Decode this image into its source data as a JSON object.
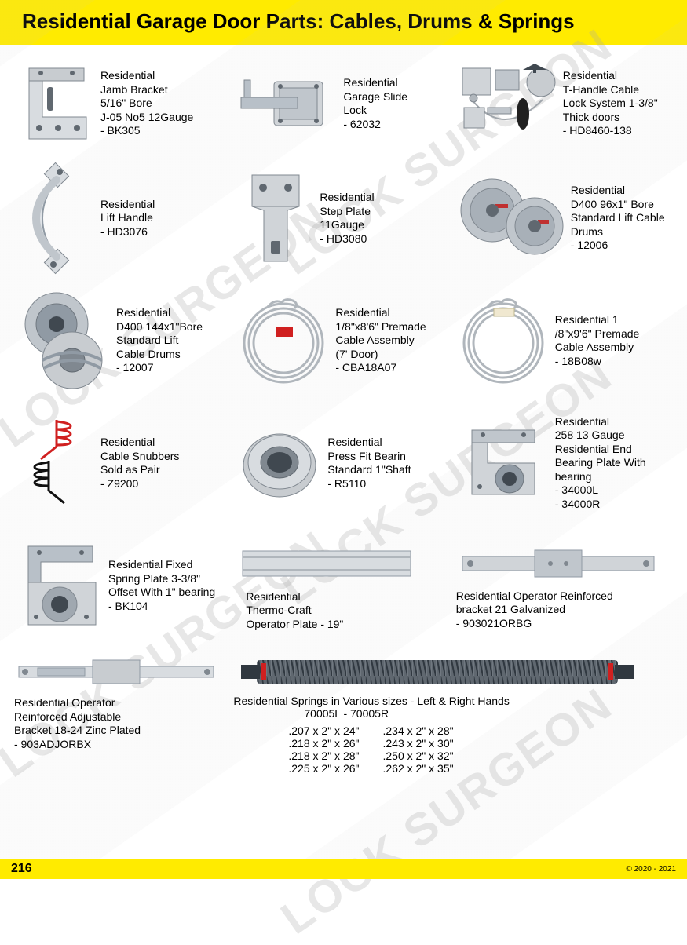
{
  "header": {
    "title": "Residential Garage Door Parts: Cables, Drums & Springs",
    "bg_color": "#ffeb00",
    "text_color": "#000000"
  },
  "watermark_text": "LOCK SURGEON",
  "products": {
    "r1": [
      {
        "name": "jamb-bracket",
        "text": "Residential\nJamb Bracket\n5/16\" Bore\nJ-05 No5 12Gauge\n- BK305",
        "icon": "bracket-angle"
      },
      {
        "name": "slide-lock",
        "text": "Residential\nGarage Slide\nLock\n- 62032",
        "icon": "slide-lock"
      },
      {
        "name": "t-handle-lock",
        "text": "Residential\nT-Handle Cable\nLock System 1-3/8\"\nThick doors\n- HD8460-138",
        "icon": "kit"
      }
    ],
    "r2": [
      {
        "name": "lift-handle",
        "text": "Residential\nLift Handle\n- HD3076",
        "icon": "handle"
      },
      {
        "name": "step-plate",
        "text": "Residential\nStep Plate\n11Gauge\n- HD3080",
        "icon": "step-plate"
      },
      {
        "name": "cable-drums-96",
        "text": "Residential\nD400 96x1\" Bore\nStandard Lift Cable\nDrums\n- 12006",
        "icon": "drums"
      }
    ],
    "r3": [
      {
        "name": "cable-drums-144",
        "text": "Residential\nD400 144x1\"Bore\nStandard Lift\nCable Drums\n- 12007",
        "icon": "drums"
      },
      {
        "name": "cable-7ft",
        "text": "Residential\n1/8\"x8'6\" Premade\nCable Assembly\n(7' Door)\n- CBA18A07",
        "icon": "cable-coil"
      },
      {
        "name": "cable-9ft",
        "text": "Residential 1\n/8\"x9'6\" Premade\nCable Assembly\n- 18B08w",
        "icon": "cable-coil"
      }
    ],
    "r4": [
      {
        "name": "cable-snubbers",
        "text": "Residential\nCable Snubbers\nSold as Pair\n- Z9200",
        "icon": "snubbers"
      },
      {
        "name": "press-fit-bearing",
        "text": "Residential\nPress Fit Bearin\nStandard 1\"Shaft\n- R5110",
        "icon": "bearing"
      },
      {
        "name": "end-bearing-plate",
        "text": "Residential\n258 13 Gauge\nResidential End\nBearing Plate With\nbearing\n- 34000L\n- 34000R",
        "icon": "end-plate"
      }
    ],
    "r5": [
      {
        "name": "fixed-spring-plate",
        "text": "Residential Fixed\nSpring Plate 3-3/8\"\nOffset With 1\" bearing\n- BK104",
        "icon": "spring-plate"
      },
      {
        "name": "thermo-operator-plate",
        "text": "Residential\nThermo-Craft\nOperator Plate - 19\"",
        "icon": "long-plate",
        "below": true
      },
      {
        "name": "reinforced-bracket-21",
        "text": "Residential Operator Reinforced\nbracket 21 Galvanized\n- 903021ORBG",
        "icon": "reinforced-bracket",
        "below": true
      }
    ],
    "bottom": {
      "left": {
        "name": "adjustable-bracket",
        "text": "Residential Operator\nReinforced Adjustable\nBracket 18-24 Zinc Plated\n- 903ADJORBX",
        "icon": "adjustable-bracket"
      },
      "spring_title": "Residential Springs in Various sizes - Left & Right Hands",
      "spring_codes": "70005L   -   70005R",
      "spring_sizes_left": [
        ".207 x 2\" x 24\"",
        ".218 x 2\" x 26\"",
        ".218 x 2\" x 28\"",
        ".225 x 2\" x 26\""
      ],
      "spring_sizes_right": [
        ".234 x 2\" x 28\"",
        ".243 x 2\" x 30\"",
        ".250 x 2\" x 32\"",
        ".262 x 2\" x 35\""
      ]
    }
  },
  "footer": {
    "page_number": "216",
    "copyright": "© 2020 - 2021"
  },
  "colors": {
    "metal_light": "#d8dce0",
    "metal_mid": "#a8b0b8",
    "metal_dark": "#707880",
    "red": "#d02020",
    "blue": "#2060a8",
    "black": "#101010"
  }
}
